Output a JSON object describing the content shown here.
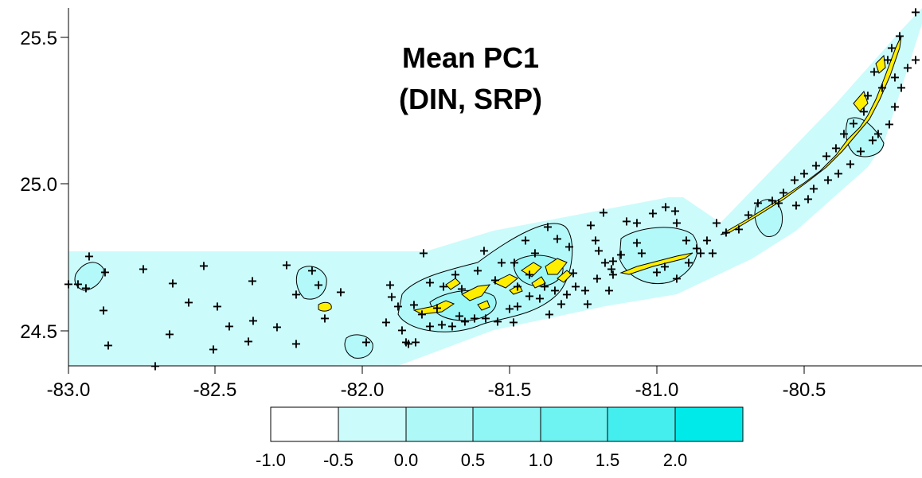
{
  "title": {
    "line1": "Mean PC1",
    "line2": "(DIN, SRP)"
  },
  "axes": {
    "x_ticks": [
      "-83.0",
      "-82.5",
      "-82.0",
      "-81.5",
      "-81.0",
      "-80.5"
    ],
    "y_ticks": [
      "25.5",
      "25.0",
      "24.5"
    ]
  },
  "legend": {
    "labels": [
      "-1.0",
      "-0.5",
      "0.0",
      "0.5",
      "1.0",
      "1.5",
      "2.0"
    ],
    "colors": [
      "#ffffff",
      "#ccfbfb",
      "#aef8f8",
      "#8ff5f5",
      "#6ef2f2",
      "#45eeee",
      "#00eaea"
    ]
  },
  "colors": {
    "land": "#ffee00",
    "background_fill": "#ccfbfb",
    "contour_line": "#000000"
  },
  "station_marker": "+"
}
